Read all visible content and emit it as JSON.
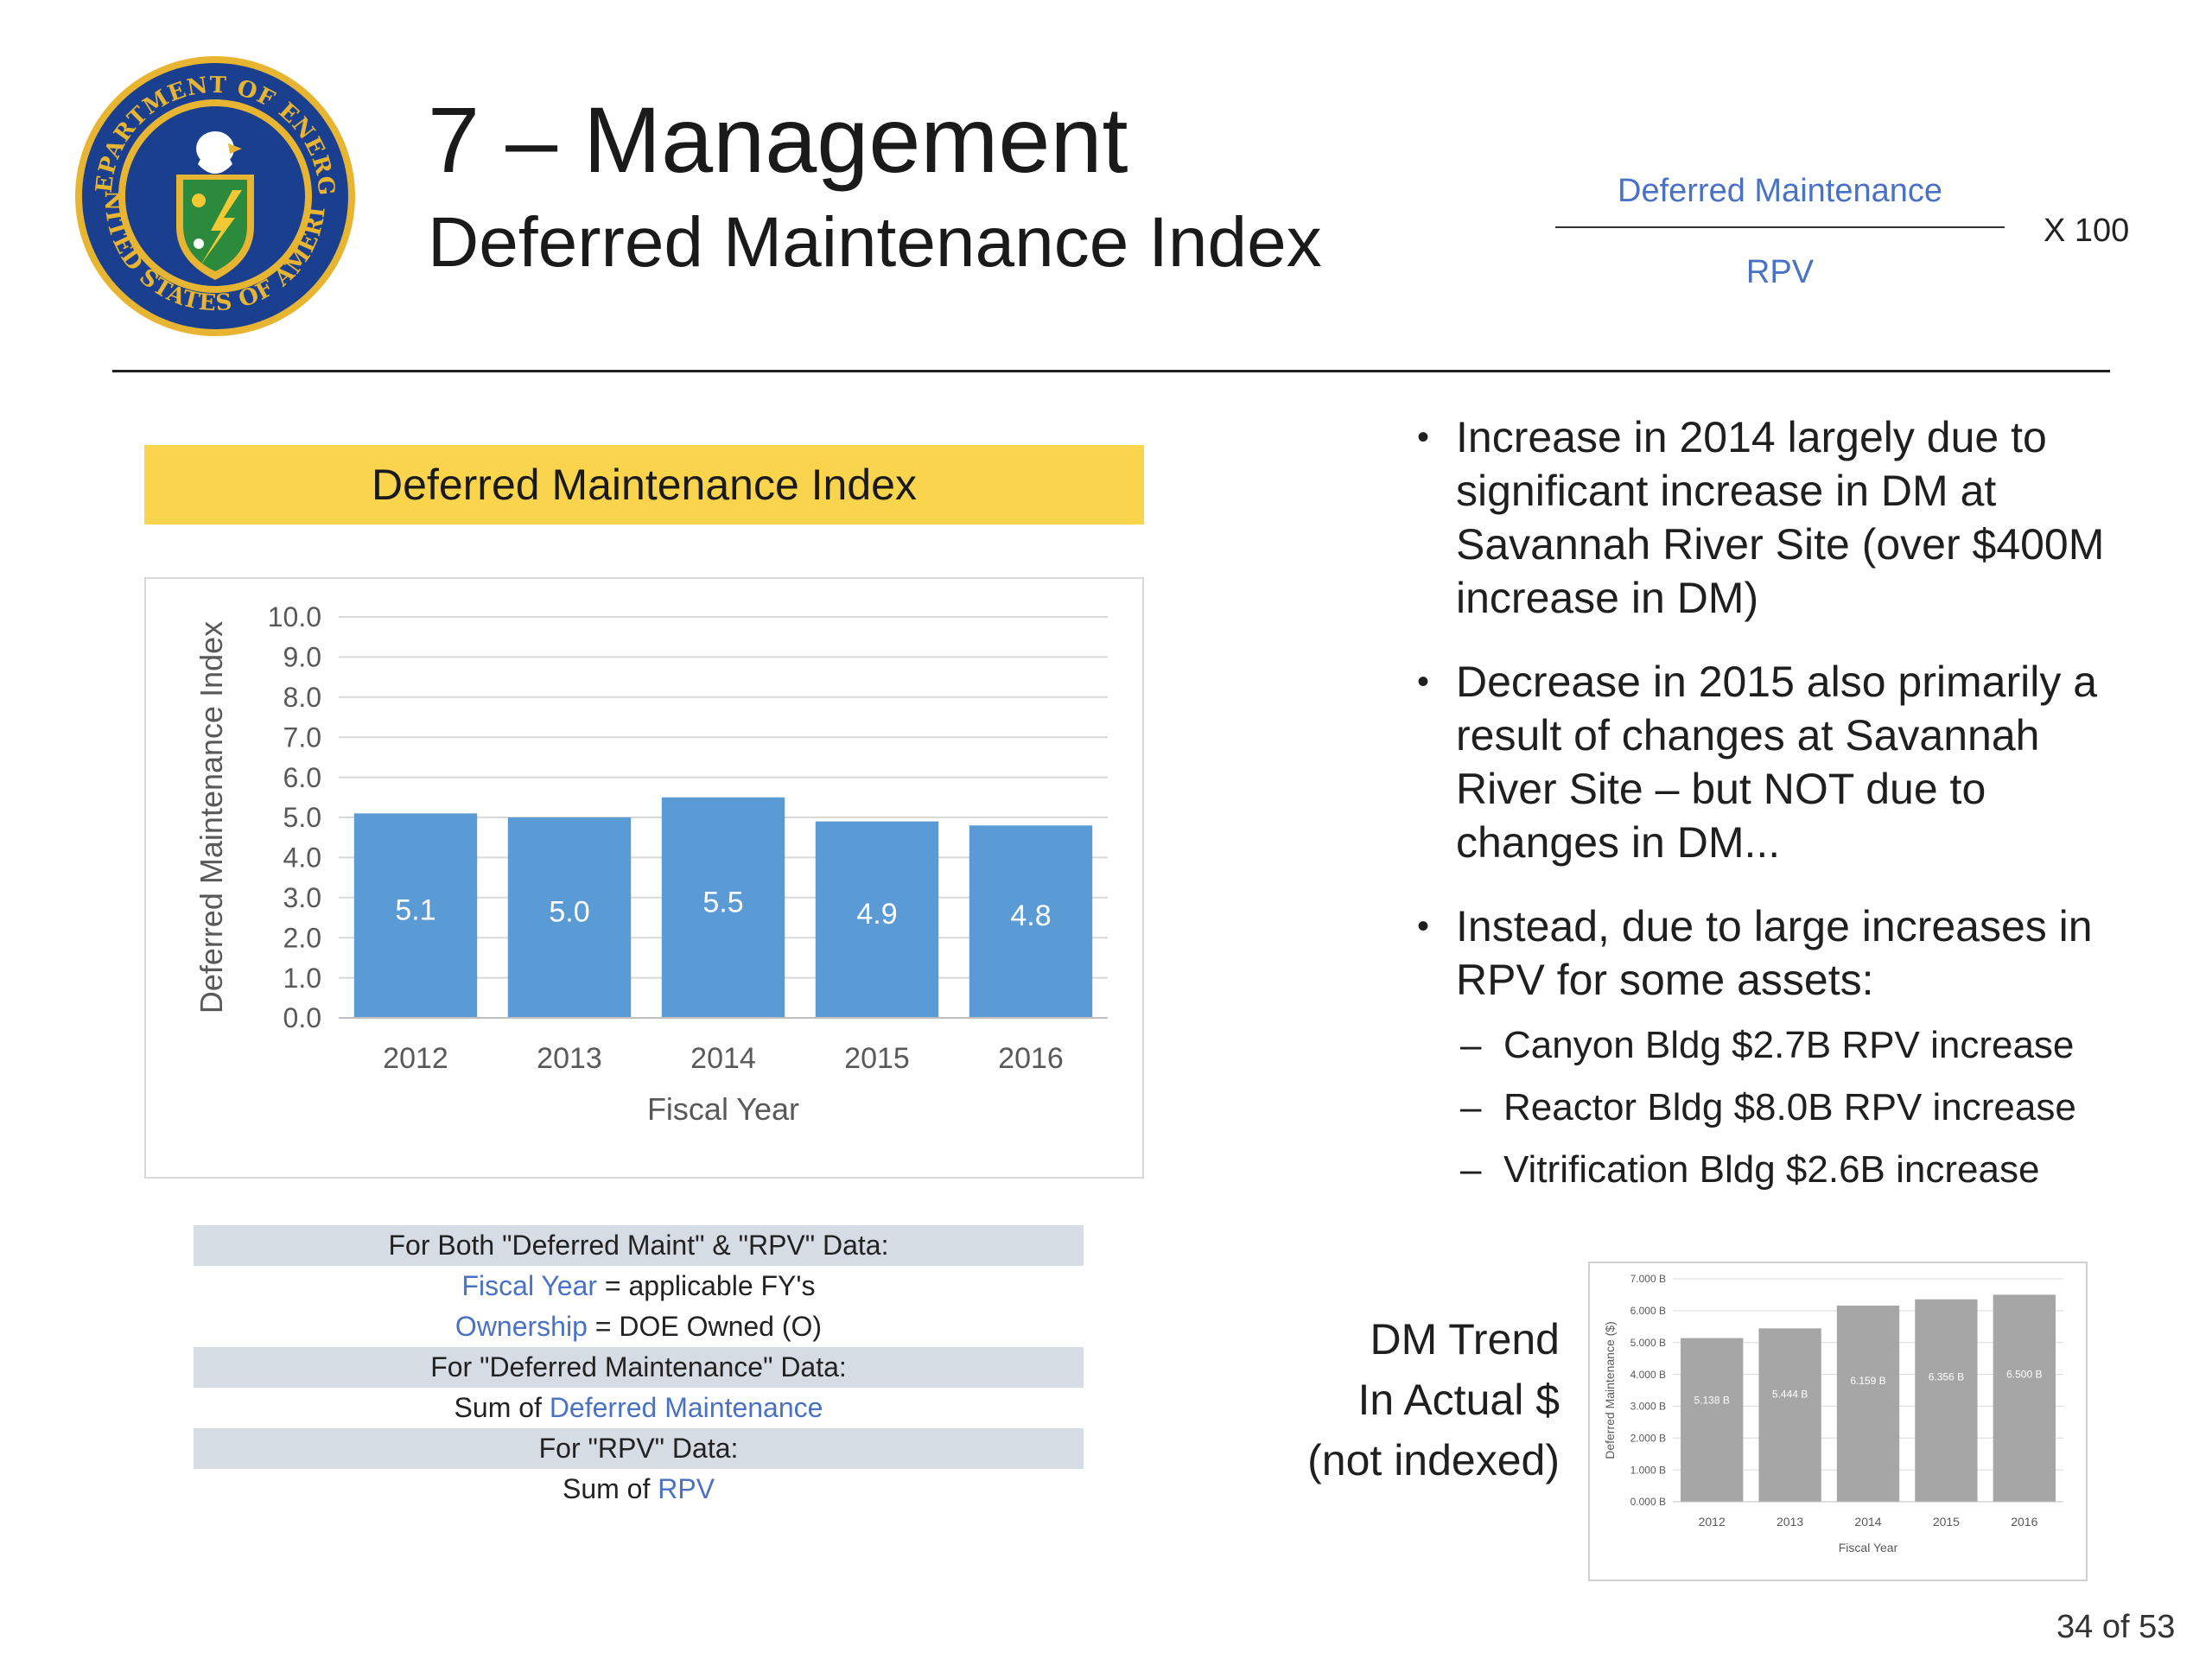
{
  "header": {
    "title": "7 – Management",
    "subtitle": "Deferred Maintenance Index"
  },
  "seal": {
    "top_text": "DEPARTMENT OF ENERGY",
    "bottom_text": "UNITED STATES OF AMERICA",
    "colors": {
      "ring": "#1b3f8f",
      "gold": "#e7b532",
      "shield": "#2c8a3c",
      "bolt": "#f2c935"
    }
  },
  "formula": {
    "numerator": "Deferred Maintenance",
    "denominator": "RPV",
    "multiplier": "X  100"
  },
  "chart_banner": "Deferred Maintenance Index",
  "chart_data": [
    {
      "type": "bar",
      "categories": [
        "2012",
        "2013",
        "2014",
        "2015",
        "2016"
      ],
      "values": [
        5.1,
        5.0,
        5.5,
        4.9,
        4.8
      ],
      "data_labels": [
        "5.1",
        "5.0",
        "5.5",
        "4.9",
        "4.8"
      ],
      "xlabel": "Fiscal Year",
      "ylabel": "Deferred Maintenance Index",
      "ylim": [
        0,
        10
      ],
      "yticks": [
        "0.0",
        "1.0",
        "2.0",
        "3.0",
        "4.0",
        "5.0",
        "6.0",
        "7.0",
        "8.0",
        "9.0",
        "10.0"
      ],
      "grid": true,
      "bar_color": "#5b9bd5"
    },
    {
      "type": "bar",
      "categories": [
        "2012",
        "2013",
        "2014",
        "2015",
        "2016"
      ],
      "values": [
        5.138,
        5.444,
        6.159,
        6.356,
        6.5
      ],
      "data_labels": [
        "5.138 B",
        "5.444 B",
        "6.159 B",
        "6.356 B",
        "6.500 B"
      ],
      "xlabel": "Fiscal Year",
      "ylabel": "Deferred Maintenance ($)",
      "ylim": [
        0,
        7
      ],
      "yticks": [
        "0.000 B",
        "1.000 B",
        "2.000 B",
        "3.000 B",
        "4.000 B",
        "5.000 B",
        "6.000 B",
        "7.000 B"
      ],
      "grid": true,
      "bar_color": "#a6a6a6"
    }
  ],
  "bullets": [
    {
      "text": "Increase in 2014 largely due to significant increase in DM at Savannah River Site (over $400M increase in DM)"
    },
    {
      "text": "Decrease in 2015 also primarily a result of changes at Savannah River Site – but NOT due to changes in DM..."
    },
    {
      "text": "Instead, due to large increases in RPV for some assets:"
    }
  ],
  "sub_bullets": [
    "Canyon Bldg $2.7B RPV increase",
    "Reactor Bldg $8.0B RPV increase",
    "Vitrification Bldg $2.6B increase"
  ],
  "filters": {
    "row1": "For Both \"Deferred Maint\" & \"RPV\" Data:",
    "row2_link": "Fiscal Year",
    "row2_rest": " = applicable FY's",
    "row3_link": "Ownership",
    "row3_rest": " = DOE Owned (O)",
    "row4": "For \"Deferred Maintenance\" Data:",
    "row5_pre": "Sum of ",
    "row5_link": "Deferred Maintenance",
    "row6": "For \"RPV\" Data:",
    "row7_pre": "Sum of ",
    "row7_link": "RPV"
  },
  "trend_label": {
    "line1": "DM Trend",
    "line2": "In Actual $",
    "line3": "(not indexed)"
  },
  "page_number": "34 of 53"
}
